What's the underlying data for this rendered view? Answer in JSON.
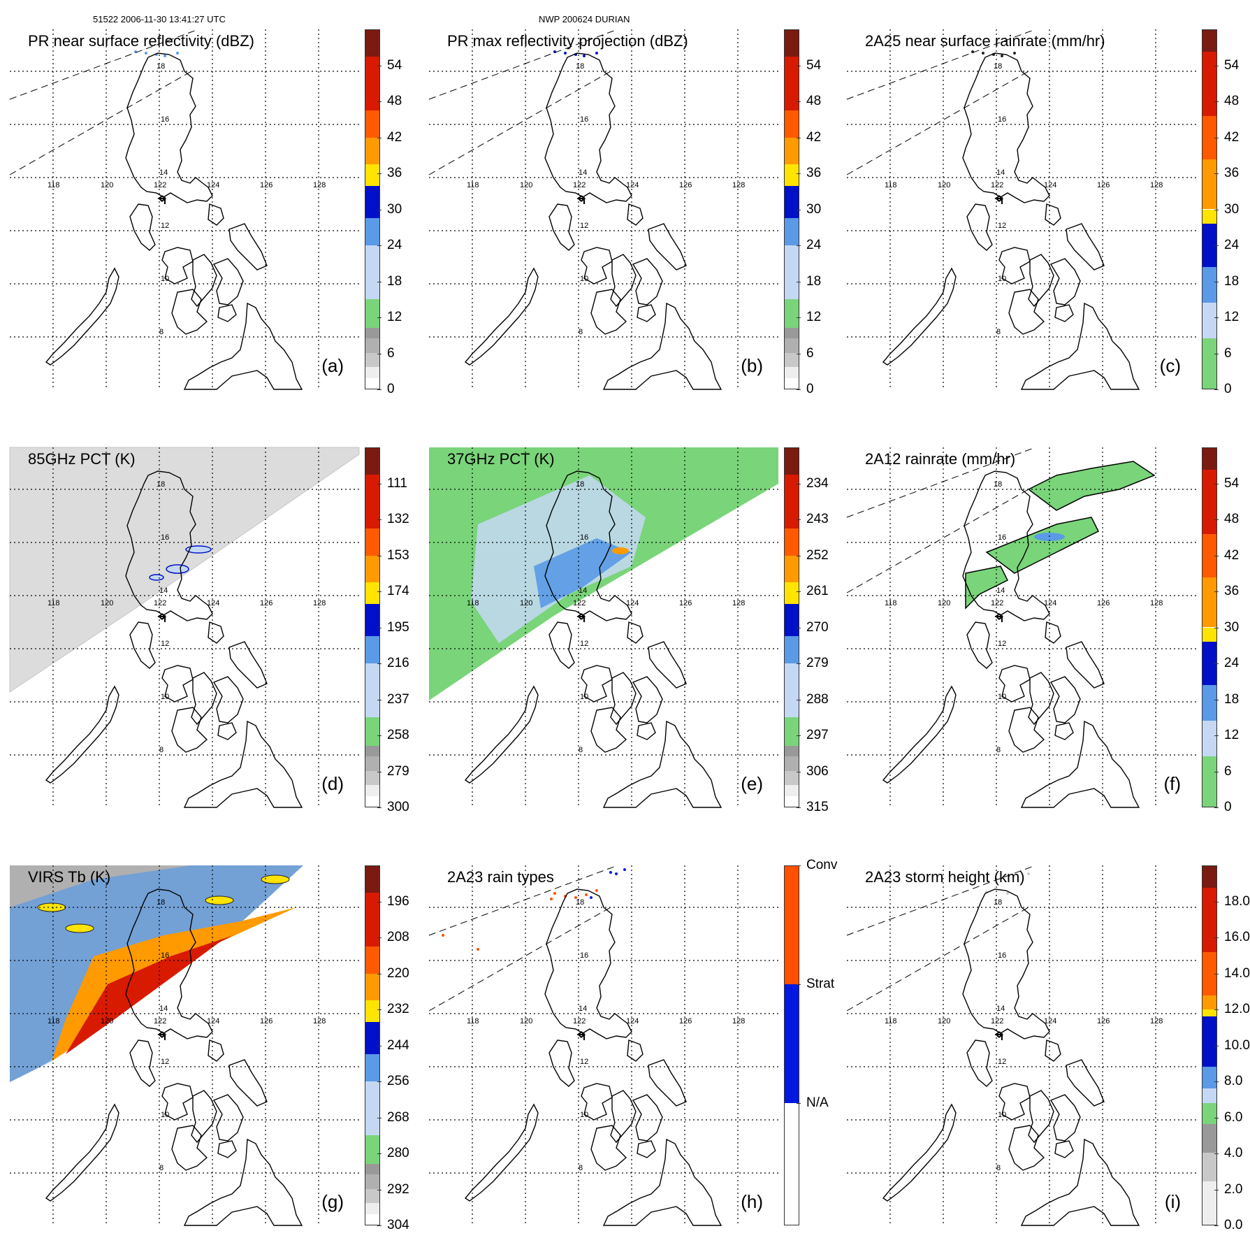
{
  "header": {
    "orbit_time": "51522 2006-11-30 13:41:27 UTC",
    "storm": "NWP 200624 DURIAN"
  },
  "map": {
    "lon_labels": [
      "118",
      "120",
      "122",
      "124",
      "126",
      "128"
    ],
    "lat_labels": [
      "18",
      "16",
      "14",
      "12",
      "10",
      "8"
    ]
  },
  "panels": [
    {
      "title": "PR near surface reflectivity (dBZ)",
      "label": "(a)",
      "ticks": [
        "54",
        "48",
        "42",
        "36",
        "30",
        "24",
        "18",
        "12",
        "6",
        "0"
      ]
    },
    {
      "title": "PR max reflectivity projection (dBZ)",
      "label": "(b)",
      "ticks": [
        "54",
        "48",
        "42",
        "36",
        "30",
        "24",
        "18",
        "12",
        "6",
        "0"
      ]
    },
    {
      "title": "2A25 near surface rainrate (mm/hr)",
      "label": "(c)",
      "ticks": [
        "54",
        "48",
        "42",
        "36",
        "30",
        "24",
        "18",
        "12",
        "6",
        "0"
      ]
    },
    {
      "title": "85GHz PCT (K)",
      "label": "(d)",
      "ticks": [
        "111",
        "132",
        "153",
        "174",
        "195",
        "216",
        "237",
        "258",
        "279",
        "300"
      ]
    },
    {
      "title": "37GHz PCT (K)",
      "label": "(e)",
      "ticks": [
        "234",
        "243",
        "252",
        "261",
        "270",
        "279",
        "288",
        "297",
        "306",
        "315"
      ]
    },
    {
      "title": "2A12 rainrate (mm/hr)",
      "label": "(f)",
      "ticks": [
        "54",
        "48",
        "42",
        "36",
        "30",
        "24",
        "18",
        "12",
        "6",
        "0"
      ]
    },
    {
      "title": "VIRS Tb (K)",
      "label": "(g)",
      "ticks": [
        "196",
        "208",
        "220",
        "232",
        "244",
        "256",
        "268",
        "280",
        "292",
        "304"
      ]
    },
    {
      "title": "2A23 rain types",
      "label": "(h)",
      "ticks": [
        "Conv",
        "Strat",
        "N/A"
      ]
    },
    {
      "title": "2A23 storm height (km)",
      "label": "(i)",
      "ticks": [
        "18.0",
        "16.0",
        "14.0",
        "12.0",
        "10.0",
        "8.0",
        "6.0",
        "4.0",
        "2.0",
        "0.0"
      ]
    }
  ],
  "colors": {
    "gray_ramp": [
      "#ffffff",
      "#eeeeee",
      "#dddddd",
      "#c8c8c8",
      "#b0b0b0",
      "#999999"
    ],
    "green": "#7ad47a",
    "light_blue": "#c4d8f4",
    "mid_blue": "#5a9ae6",
    "blue": "#1f3be0",
    "dark_blue": "#0010c8",
    "yellow": "#ffe400",
    "orange": "#ff9a00",
    "red_orange": "#ff5a00",
    "red": "#d81a00",
    "dark_red": "#7a1a10",
    "conv": "#ff5000",
    "strat": "#0018e0"
  }
}
